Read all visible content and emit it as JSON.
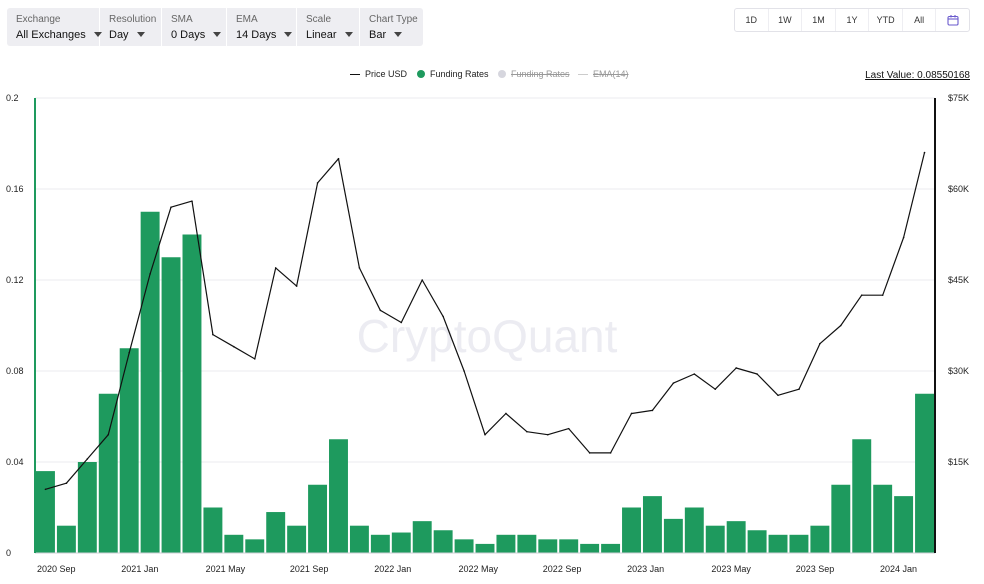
{
  "toolbar": {
    "controls": [
      {
        "label": "Exchange",
        "value": "All Exchanges"
      },
      {
        "label": "Resolution",
        "value": "Day"
      },
      {
        "label": "SMA",
        "value": "0 Days"
      },
      {
        "label": "EMA",
        "value": "14 Days"
      },
      {
        "label": "Scale",
        "value": "Linear"
      },
      {
        "label": "Chart Type",
        "value": "Bar"
      }
    ]
  },
  "ranges": [
    "1D",
    "1W",
    "1M",
    "1Y",
    "YTD",
    "All"
  ],
  "icons": {
    "calendar": "calendar-icon"
  },
  "colors": {
    "funding": "#1e9a5e",
    "price": "#111111",
    "disabled": "#d6d6de",
    "grid": "#ebebef"
  },
  "legend": {
    "price": "Price USD",
    "funding": "Funding Rates",
    "funding_disabled": "Funding Rates",
    "ema": "EMA(14)"
  },
  "last_value": "Last Value: 0.08550168",
  "watermark": "CryptoQuant",
  "chart_data": {
    "type": "bar",
    "x_ticks": [
      "2020 Sep",
      "2021 Jan",
      "2021 May",
      "2021 Sep",
      "2022 Jan",
      "2022 May",
      "2022 Sep",
      "2023 Jan",
      "2023 May",
      "2023 Sep",
      "2024 Jan"
    ],
    "y_left_ticks": [
      "0.2",
      "0.16",
      "0.12",
      "0.08",
      "0.04",
      "0"
    ],
    "y_left_range": [
      0,
      0.2
    ],
    "y_right_ticks": [
      "$75K",
      "$60K",
      "$45K",
      "$30K",
      "$15K"
    ],
    "y_right_range": [
      0,
      75000
    ],
    "grid": true,
    "series": [
      {
        "name": "Funding Rates",
        "kind": "bar",
        "axis": "left",
        "points": [
          [
            "2020 Sep",
            0.036
          ],
          [
            "2020 Oct",
            0.012
          ],
          [
            "2020 Nov",
            0.04
          ],
          [
            "2020 Dec",
            0.07
          ],
          [
            "2021 Jan",
            0.09
          ],
          [
            "2021 Feb",
            0.15
          ],
          [
            "2021 Mar",
            0.13
          ],
          [
            "2021 Apr",
            0.14
          ],
          [
            "2021 May",
            0.02
          ],
          [
            "2021 Jun",
            0.008
          ],
          [
            "2021 Jul",
            0.006
          ],
          [
            "2021 Aug",
            0.018
          ],
          [
            "2021 Sep",
            0.012
          ],
          [
            "2021 Oct",
            0.03
          ],
          [
            "2021 Nov",
            0.05
          ],
          [
            "2021 Dec",
            0.012
          ],
          [
            "2022 Jan",
            0.008
          ],
          [
            "2022 Feb",
            0.009
          ],
          [
            "2022 Mar",
            0.014
          ],
          [
            "2022 Apr",
            0.01
          ],
          [
            "2022 May",
            0.006
          ],
          [
            "2022 Jun",
            0.004
          ],
          [
            "2022 Jul",
            0.008
          ],
          [
            "2022 Aug",
            0.008
          ],
          [
            "2022 Sep",
            0.006
          ],
          [
            "2022 Oct",
            0.006
          ],
          [
            "2022 Nov",
            0.004
          ],
          [
            "2022 Dec",
            0.004
          ],
          [
            "2023 Jan",
            0.02
          ],
          [
            "2023 Feb",
            0.025
          ],
          [
            "2023 Mar",
            0.015
          ],
          [
            "2023 Apr",
            0.02
          ],
          [
            "2023 May",
            0.012
          ],
          [
            "2023 Jun",
            0.014
          ],
          [
            "2023 Jul",
            0.01
          ],
          [
            "2023 Aug",
            0.008
          ],
          [
            "2023 Sep",
            0.008
          ],
          [
            "2023 Oct",
            0.012
          ],
          [
            "2023 Nov",
            0.03
          ],
          [
            "2023 Dec",
            0.05
          ],
          [
            "2024 Jan",
            0.03
          ],
          [
            "2024 Feb",
            0.025
          ],
          [
            "2024 Mar",
            0.07
          ]
        ]
      },
      {
        "name": "Price USD",
        "kind": "line",
        "axis": "right",
        "points": [
          [
            "2020 Sep",
            10500
          ],
          [
            "2020 Oct",
            11500
          ],
          [
            "2020 Nov",
            15500
          ],
          [
            "2020 Dec",
            19500
          ],
          [
            "2021 Jan",
            33000
          ],
          [
            "2021 Feb",
            46000
          ],
          [
            "2021 Mar",
            57000
          ],
          [
            "2021 Apr",
            58000
          ],
          [
            "2021 May",
            36000
          ],
          [
            "2021 Jun",
            34000
          ],
          [
            "2021 Jul",
            32000
          ],
          [
            "2021 Aug",
            47000
          ],
          [
            "2021 Sep",
            44000
          ],
          [
            "2021 Oct",
            61000
          ],
          [
            "2021 Nov",
            65000
          ],
          [
            "2021 Dec",
            47000
          ],
          [
            "2022 Jan",
            40000
          ],
          [
            "2022 Feb",
            38000
          ],
          [
            "2022 Mar",
            45000
          ],
          [
            "2022 Apr",
            39000
          ],
          [
            "2022 May",
            30000
          ],
          [
            "2022 Jun",
            19500
          ],
          [
            "2022 Jul",
            23000
          ],
          [
            "2022 Aug",
            20000
          ],
          [
            "2022 Sep",
            19500
          ],
          [
            "2022 Oct",
            20500
          ],
          [
            "2022 Nov",
            16500
          ],
          [
            "2022 Dec",
            16500
          ],
          [
            "2023 Jan",
            23000
          ],
          [
            "2023 Feb",
            23500
          ],
          [
            "2023 Mar",
            28000
          ],
          [
            "2023 Apr",
            29500
          ],
          [
            "2023 May",
            27000
          ],
          [
            "2023 Jun",
            30500
          ],
          [
            "2023 Jul",
            29500
          ],
          [
            "2023 Aug",
            26000
          ],
          [
            "2023 Sep",
            27000
          ],
          [
            "2023 Oct",
            34500
          ],
          [
            "2023 Nov",
            37500
          ],
          [
            "2023 Dec",
            42500
          ],
          [
            "2024 Jan",
            42500
          ],
          [
            "2024 Feb",
            52000
          ],
          [
            "2024 Mar",
            66000
          ]
        ]
      }
    ]
  }
}
